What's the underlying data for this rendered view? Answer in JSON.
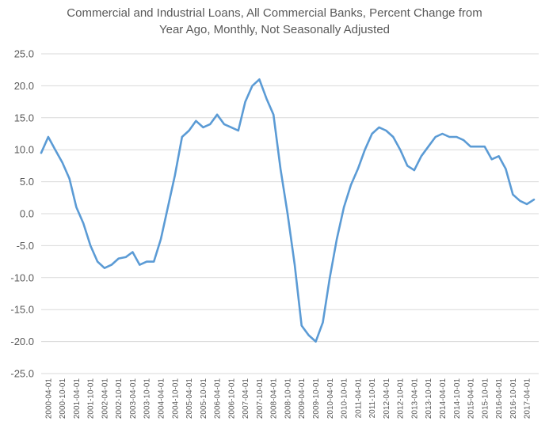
{
  "chart_data": {
    "type": "line",
    "title": [
      "Commercial and Industrial Loans, All Commercial Banks, Percent Change from",
      "Year Ago, Monthly, Not Seasonally Adjusted"
    ],
    "xlabel": "",
    "ylabel": "",
    "ylim": [
      -25,
      25
    ],
    "ytick_labels": [
      "25.0",
      "20.0",
      "15.0",
      "10.0",
      "5.0",
      "0.0",
      "-5.0",
      "-10.0",
      "-15.0",
      "-20.0",
      "-25.0"
    ],
    "xtick_labels": [
      "2000-04-01",
      "2000-10-01",
      "2001-04-01",
      "2001-10-01",
      "2002-04-01",
      "2002-10-01",
      "2003-04-01",
      "2003-10-01",
      "2004-04-01",
      "2004-10-01",
      "2005-04-01",
      "2005-10-01",
      "2006-04-01",
      "2006-10-01",
      "2007-04-01",
      "2007-10-01",
      "2008-04-01",
      "2008-10-01",
      "2009-04-01",
      "2009-10-01",
      "2010-04-01",
      "2010-10-01",
      "2011-04-01",
      "2011-10-01",
      "2012-04-01",
      "2012-10-01",
      "2013-04-01",
      "2013-10-01",
      "2014-04-01",
      "2014-10-01",
      "2015-04-01",
      "2015-10-01",
      "2016-04-01",
      "2016-10-01",
      "2017-04-01"
    ],
    "series_color": "#5B9BD5",
    "grid": true,
    "legend": "none",
    "series": [
      {
        "x": [
          "2000-01-01",
          "2000-04-01",
          "2000-07-01",
          "2000-10-01",
          "2001-01-01",
          "2001-04-01",
          "2001-07-01",
          "2001-10-01",
          "2002-01-01",
          "2002-04-01",
          "2002-07-01",
          "2002-10-01",
          "2003-01-01",
          "2003-04-01",
          "2003-07-01",
          "2003-10-01",
          "2004-01-01",
          "2004-04-01",
          "2004-07-01",
          "2004-10-01",
          "2005-01-01",
          "2005-04-01",
          "2005-07-01",
          "2005-10-01",
          "2006-01-01",
          "2006-04-01",
          "2006-07-01",
          "2006-10-01",
          "2007-01-01",
          "2007-04-01",
          "2007-07-01",
          "2007-10-01",
          "2008-01-01",
          "2008-04-01",
          "2008-07-01",
          "2008-10-01",
          "2009-01-01",
          "2009-04-01",
          "2009-07-01",
          "2009-10-01",
          "2010-01-01",
          "2010-04-01",
          "2010-07-01",
          "2010-10-01",
          "2011-01-01",
          "2011-04-01",
          "2011-07-01",
          "2011-10-01",
          "2012-01-01",
          "2012-04-01",
          "2012-07-01",
          "2012-10-01",
          "2013-01-01",
          "2013-04-01",
          "2013-07-01",
          "2013-10-01",
          "2014-01-01",
          "2014-04-01",
          "2014-07-01",
          "2014-10-01",
          "2015-01-01",
          "2015-04-01",
          "2015-07-01",
          "2015-10-01",
          "2016-01-01",
          "2016-04-01",
          "2016-07-01",
          "2016-10-01",
          "2017-01-01",
          "2017-04-01",
          "2017-07-01"
        ],
        "values": [
          9.5,
          12.0,
          10.0,
          8.0,
          5.5,
          1.0,
          -1.5,
          -5.0,
          -7.5,
          -8.5,
          -8.0,
          -7.0,
          -6.8,
          -6.0,
          -8.0,
          -7.5,
          -7.5,
          -4.0,
          1.0,
          6.0,
          12.0,
          13.0,
          14.5,
          13.5,
          14.0,
          15.5,
          14.0,
          13.5,
          13.0,
          17.5,
          20.0,
          21.0,
          18.0,
          15.5,
          7.0,
          0.0,
          -8.0,
          -17.5,
          -19.0,
          -20.0,
          -17.0,
          -10.0,
          -4.0,
          1.0,
          4.5,
          7.0,
          10.0,
          12.5,
          13.5,
          13.0,
          12.0,
          10.0,
          7.5,
          6.8,
          9.0,
          10.5,
          12.0,
          12.5,
          12.0,
          12.0,
          11.5,
          10.5,
          10.5,
          10.5,
          8.5,
          9.0,
          7.0,
          3.0,
          2.0,
          1.5,
          2.2
        ]
      }
    ]
  }
}
